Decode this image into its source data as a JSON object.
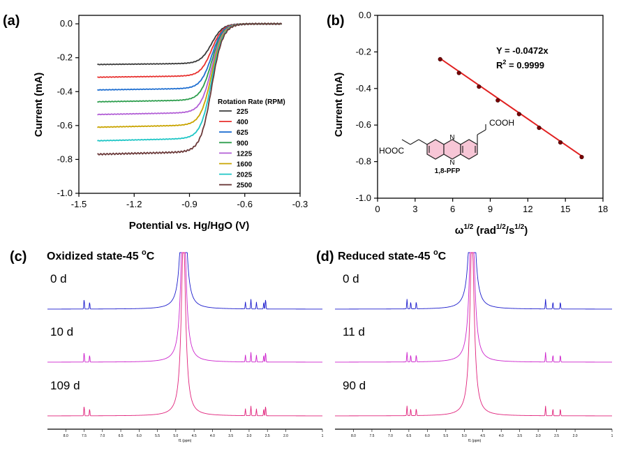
{
  "chart_data": [
    {
      "panel": "(a)",
      "type": "line",
      "xlabel": "Potential vs. Hg/HgO (V)",
      "ylabel": "Current (mA)",
      "xlim": [
        -1.5,
        -0.3
      ],
      "ylim": [
        -1.0,
        0.05
      ],
      "xticks": [
        "-1.5",
        "-1.2",
        "-0.9",
        "-0.6",
        "-0.3"
      ],
      "yticks": [
        "0.0",
        "-0.2",
        "-0.4",
        "-0.6",
        "-0.8",
        "-1.0"
      ],
      "legend_title": "Rotation Rate (RPM)",
      "x_start": -1.4,
      "x_end": -0.4,
      "half_wave_potential": -0.78,
      "series": [
        {
          "name": "225",
          "color": "#3a3a3a",
          "plateau": -0.24,
          "onset_slope": -0.025
        },
        {
          "name": "400",
          "color": "#e8312f",
          "plateau": -0.315,
          "onset_slope": -0.03
        },
        {
          "name": "625",
          "color": "#1f6fd1",
          "plateau": -0.39,
          "onset_slope": -0.035
        },
        {
          "name": "900",
          "color": "#2e9e4e",
          "plateau": -0.46,
          "onset_slope": -0.04
        },
        {
          "name": "1225",
          "color": "#b25fd6",
          "plateau": -0.535,
          "onset_slope": -0.045
        },
        {
          "name": "1600",
          "color": "#c9a400",
          "plateau": -0.61,
          "onset_slope": -0.05
        },
        {
          "name": "2025",
          "color": "#1fc6c6",
          "plateau": -0.69,
          "onset_slope": -0.055
        },
        {
          "name": "2500",
          "color": "#6b3a3a",
          "plateau": -0.77,
          "onset_slope": -0.06
        }
      ]
    },
    {
      "panel": "(b)",
      "type": "scatter",
      "xlabel_main": "ω",
      "xlabel_sup": "1/2",
      "xlabel_unit": " (rad",
      "xlabel_unit_sup": "1/2",
      "xlabel_unit_mid": "/s",
      "xlabel_unit_sup2": "1/2",
      "xlabel_close": ")",
      "ylabel": "Current (mA)",
      "xlim": [
        0,
        18
      ],
      "ylim": [
        -1.0,
        0.0
      ],
      "xticks": [
        "0",
        "3",
        "6",
        "9",
        "12",
        "15",
        "18"
      ],
      "yticks": [
        "0.0",
        "-0.2",
        "-0.4",
        "-0.6",
        "-0.8",
        "-1.0"
      ],
      "x": [
        5.0,
        6.5,
        8.1,
        9.6,
        11.3,
        12.9,
        14.6,
        16.3
      ],
      "y": [
        -0.24,
        -0.315,
        -0.39,
        -0.465,
        -0.54,
        -0.615,
        -0.695,
        -0.775
      ],
      "fit_equation": "Y = -0.0472x",
      "r2_label": "R",
      "r2_sup": "2",
      "r2_value": " = 0.9999",
      "molecule_name": "1,8-PFP",
      "molecule_groups": {
        "cooh": "COOH",
        "hooc": "HOOC",
        "n_atom": "N"
      },
      "colors": {
        "points": "#7a0000",
        "fit": "#e02020"
      }
    },
    {
      "panel": "(c)",
      "type": "line",
      "title": "Oxidized state-45 ",
      "title_sup": "o",
      "title_unit": "C",
      "xlabel": "f1 (ppm)",
      "x_tick_labels": [
        "8.0",
        "7.5",
        "7.0",
        "6.5",
        "6.0",
        "5.5",
        "5.0",
        "4.5",
        "4.0",
        "3.5",
        "3.0",
        "2.5",
        "2.0",
        "1"
      ],
      "series": [
        {
          "name": "0 d",
          "color": "#1a1acc",
          "peaks_ppm": [
            7.5,
            7.35,
            3.1,
            2.95,
            2.8,
            2.6,
            2.55
          ]
        },
        {
          "name": "10 d",
          "color": "#cc22cc",
          "peaks_ppm": [
            7.5,
            7.35,
            3.1,
            2.95,
            2.8,
            2.6,
            2.55
          ]
        },
        {
          "name": "109 d",
          "color": "#e0207a",
          "peaks_ppm": [
            7.5,
            7.35,
            3.1,
            2.95,
            2.8,
            2.6,
            2.55
          ]
        }
      ],
      "solvent_peak_ppm": 4.79
    },
    {
      "panel": "(d)",
      "type": "line",
      "title": "Reduced state-45 ",
      "title_sup": "o",
      "title_unit": "C",
      "xlabel": "f1 (ppm)",
      "x_tick_labels": [
        "8.0",
        "7.5",
        "7.0",
        "6.5",
        "6.0",
        "5.5",
        "5.0",
        "4.5",
        "4.0",
        "3.5",
        "3.0",
        "2.5",
        "2.0",
        "1"
      ],
      "series": [
        {
          "name": "0 d",
          "color": "#1a1acc",
          "peaks_ppm": [
            6.55,
            6.45,
            6.3,
            2.8,
            2.6,
            2.4
          ]
        },
        {
          "name": "11 d",
          "color": "#cc22cc",
          "peaks_ppm": [
            6.55,
            6.45,
            6.3,
            2.8,
            2.6,
            2.4
          ]
        },
        {
          "name": "90 d",
          "color": "#e0207a",
          "peaks_ppm": [
            6.55,
            6.45,
            6.3,
            2.8,
            2.6,
            2.4
          ]
        }
      ],
      "solvent_peak_ppm": 4.79
    }
  ]
}
